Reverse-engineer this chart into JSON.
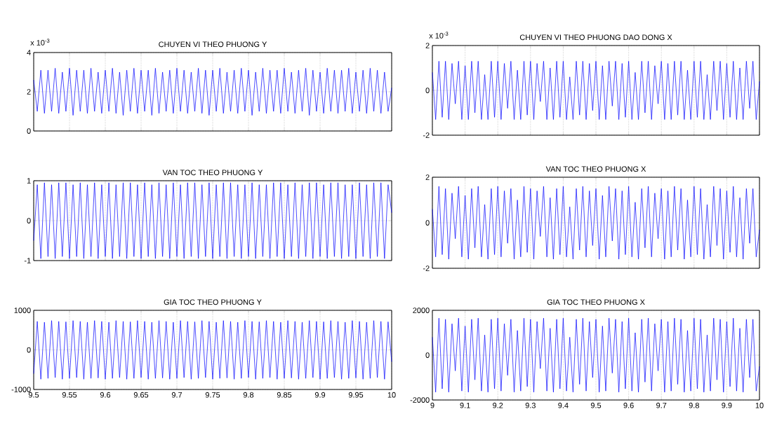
{
  "chart_data": [
    {
      "type": "line",
      "title": "CHUYEN VI THEO PHUONG Y",
      "annotations": [
        "x 10$^{-3}$"
      ],
      "color": "#0000ff",
      "grid": true,
      "tick_labels": "y",
      "xlim": [
        9.5,
        10
      ],
      "ylim": [
        0,
        4
      ],
      "xticks": [
        9.5,
        9.55,
        9.6,
        9.65,
        9.7,
        9.75,
        9.8,
        9.85,
        9.9,
        9.95,
        10
      ],
      "yticks": [
        0,
        2,
        4
      ],
      "x": [
        9.5,
        9.505,
        9.51,
        9.515,
        9.52,
        9.525,
        9.53,
        9.535,
        9.54,
        9.545,
        9.55,
        9.555,
        9.56,
        9.565,
        9.57,
        9.575,
        9.58,
        9.585,
        9.59,
        9.595,
        9.6,
        9.605,
        9.61,
        9.615,
        9.62,
        9.625,
        9.63,
        9.635,
        9.64,
        9.645,
        9.65,
        9.655,
        9.66,
        9.665,
        9.67,
        9.675,
        9.68,
        9.685,
        9.69,
        9.695,
        9.7,
        9.705,
        9.71,
        9.715,
        9.72,
        9.725,
        9.73,
        9.735,
        9.74,
        9.745,
        9.75,
        9.755,
        9.76,
        9.765,
        9.77,
        9.775,
        9.78,
        9.785,
        9.79,
        9.795,
        9.8,
        9.805,
        9.81,
        9.815,
        9.82,
        9.825,
        9.83,
        9.835,
        9.84,
        9.845,
        9.85,
        9.855,
        9.86,
        9.865,
        9.87,
        9.875,
        9.88,
        9.885,
        9.89,
        9.895,
        9.9,
        9.905,
        9.91,
        9.915,
        9.92,
        9.925,
        9.93,
        9.935,
        9.94,
        9.945,
        9.95,
        9.955,
        9.96,
        9.965,
        9.97,
        9.975,
        9.98,
        9.985,
        9.99,
        9.995,
        10
      ],
      "values": [
        2.6,
        1.0,
        3.1,
        0.9,
        3.1,
        1.0,
        3.2,
        0.9,
        3.0,
        1.0,
        3.2,
        0.8,
        3.1,
        1.0,
        3.1,
        0.9,
        3.2,
        1.0,
        3.0,
        0.9,
        3.1,
        1.0,
        3.2,
        0.9,
        3.0,
        0.8,
        3.1,
        1.0,
        3.2,
        0.9,
        3.1,
        1.0,
        3.1,
        0.8,
        3.2,
        0.9,
        3.0,
        1.0,
        3.1,
        0.9,
        3.2,
        1.0,
        3.1,
        0.9,
        3.0,
        1.0,
        3.2,
        0.9,
        3.1,
        0.8,
        3.1,
        1.0,
        3.2,
        0.9,
        3.0,
        1.0,
        3.1,
        0.9,
        3.2,
        1.0,
        3.1,
        0.8,
        3.0,
        1.0,
        3.2,
        0.9,
        3.1,
        1.0,
        3.1,
        0.9,
        3.2,
        1.0,
        3.0,
        0.9,
        3.1,
        1.0,
        3.2,
        0.8,
        3.1,
        1.0,
        3.0,
        0.9,
        3.2,
        1.0,
        3.1,
        0.9,
        3.1,
        1.0,
        3.2,
        0.9,
        3.0,
        1.0,
        3.1,
        0.9,
        3.2,
        1.0,
        3.1,
        0.9,
        3.0,
        1.0,
        2.2
      ]
    },
    {
      "type": "line",
      "title": "CHUYEN VI THEO PHUONG DAO DONG X",
      "annotations": [
        "x 10$^{-3}$"
      ],
      "color": "#0000ff",
      "grid": true,
      "tick_labels": "y",
      "xlim": [
        9,
        10
      ],
      "ylim": [
        -2,
        2
      ],
      "xticks": [
        9,
        9.1,
        9.2,
        9.3,
        9.4,
        9.5,
        9.6,
        9.7,
        9.8,
        9.9,
        10
      ],
      "yticks": [
        -2,
        0,
        2
      ],
      "x": [
        9,
        9.01,
        9.02,
        9.03,
        9.04,
        9.05,
        9.06,
        9.07,
        9.08,
        9.09,
        9.1,
        9.11,
        9.12,
        9.13,
        9.14,
        9.15,
        9.16,
        9.17,
        9.18,
        9.19,
        9.2,
        9.21,
        9.22,
        9.23,
        9.24,
        9.25,
        9.26,
        9.27,
        9.28,
        9.29,
        9.3,
        9.31,
        9.32,
        9.33,
        9.34,
        9.35,
        9.36,
        9.37,
        9.38,
        9.39,
        9.4,
        9.41,
        9.42,
        9.43,
        9.44,
        9.45,
        9.46,
        9.47,
        9.48,
        9.49,
        9.5,
        9.51,
        9.52,
        9.53,
        9.54,
        9.55,
        9.56,
        9.57,
        9.58,
        9.59,
        9.6,
        9.61,
        9.62,
        9.63,
        9.64,
        9.65,
        9.66,
        9.67,
        9.68,
        9.69,
        9.7,
        9.71,
        9.72,
        9.73,
        9.74,
        9.75,
        9.76,
        9.77,
        9.78,
        9.79,
        9.8,
        9.81,
        9.82,
        9.83,
        9.84,
        9.85,
        9.86,
        9.87,
        9.88,
        9.89,
        9.9,
        9.91,
        9.92,
        9.93,
        9.94,
        9.95,
        9.96,
        9.97,
        9.98,
        9.99,
        10
      ],
      "values": [
        0.8,
        -1.3,
        1.3,
        -1.2,
        1.3,
        -1.3,
        1.2,
        -0.6,
        1.3,
        -1.3,
        1.1,
        -1.3,
        1.3,
        -1.0,
        1.3,
        -1.3,
        0.7,
        -1.3,
        1.3,
        -1.2,
        1.3,
        -1.3,
        1.2,
        -0.8,
        1.3,
        -1.3,
        0.9,
        -1.3,
        1.3,
        -1.1,
        1.3,
        -1.3,
        1.2,
        -0.5,
        1.3,
        -1.3,
        1.0,
        -1.3,
        1.3,
        -1.2,
        1.3,
        -1.3,
        0.6,
        -1.3,
        1.3,
        -1.1,
        1.3,
        -1.3,
        1.2,
        -0.9,
        1.3,
        -1.3,
        1.1,
        -1.3,
        1.3,
        -0.7,
        1.3,
        -1.3,
        1.2,
        -1.2,
        1.3,
        -1.3,
        0.8,
        -1.3,
        1.3,
        -1.0,
        1.3,
        -1.3,
        1.1,
        -0.6,
        1.3,
        -1.3,
        1.2,
        -1.3,
        1.3,
        -1.1,
        1.3,
        -1.3,
        0.9,
        -1.3,
        1.3,
        -1.2,
        1.3,
        -1.3,
        0.7,
        -1.3,
        1.3,
        -0.9,
        1.3,
        -1.3,
        1.2,
        -1.2,
        1.3,
        -1.3,
        1.0,
        -1.3,
        1.3,
        -0.8,
        1.3,
        -1.3,
        0.4
      ]
    },
    {
      "type": "line",
      "title": "VAN TOC THEO PHUONG Y",
      "color": "#0000ff",
      "grid": true,
      "tick_labels": "y",
      "xlim": [
        9.5,
        10
      ],
      "ylim": [
        -1,
        1
      ],
      "xticks": [
        9.5,
        9.55,
        9.6,
        9.65,
        9.7,
        9.75,
        9.8,
        9.85,
        9.9,
        9.95,
        10
      ],
      "yticks": [
        -1,
        0,
        1
      ],
      "x": [
        9.5,
        9.505,
        9.51,
        9.515,
        9.52,
        9.525,
        9.53,
        9.535,
        9.54,
        9.545,
        9.55,
        9.555,
        9.56,
        9.565,
        9.57,
        9.575,
        9.58,
        9.585,
        9.59,
        9.595,
        9.6,
        9.605,
        9.61,
        9.615,
        9.62,
        9.625,
        9.63,
        9.635,
        9.64,
        9.645,
        9.65,
        9.655,
        9.66,
        9.665,
        9.67,
        9.675,
        9.68,
        9.685,
        9.69,
        9.695,
        9.7,
        9.705,
        9.71,
        9.715,
        9.72,
        9.725,
        9.73,
        9.735,
        9.74,
        9.745,
        9.75,
        9.755,
        9.76,
        9.765,
        9.77,
        9.775,
        9.78,
        9.785,
        9.79,
        9.795,
        9.8,
        9.805,
        9.81,
        9.815,
        9.82,
        9.825,
        9.83,
        9.835,
        9.84,
        9.845,
        9.85,
        9.855,
        9.86,
        9.865,
        9.87,
        9.875,
        9.88,
        9.885,
        9.89,
        9.895,
        9.9,
        9.905,
        9.91,
        9.915,
        9.92,
        9.925,
        9.93,
        9.935,
        9.94,
        9.945,
        9.95,
        9.955,
        9.96,
        9.965,
        9.97,
        9.975,
        9.98,
        9.985,
        9.99,
        9.995,
        10
      ],
      "values": [
        -0.5,
        0.9,
        -0.95,
        0.95,
        -0.9,
        0.9,
        -0.95,
        0.95,
        -0.9,
        0.95,
        -0.95,
        0.9,
        -0.9,
        0.95,
        -0.95,
        0.9,
        -0.9,
        0.95,
        -0.95,
        0.9,
        -0.9,
        0.95,
        -0.95,
        0.9,
        -0.9,
        0.95,
        -0.95,
        0.95,
        -0.9,
        0.9,
        -0.95,
        0.95,
        -0.9,
        0.9,
        -0.95,
        0.95,
        -0.9,
        0.9,
        -0.95,
        0.95,
        -0.9,
        0.9,
        -0.95,
        0.95,
        -0.9,
        0.95,
        -0.95,
        0.9,
        -0.9,
        0.95,
        -0.95,
        0.9,
        -0.9,
        0.95,
        -0.95,
        0.95,
        -0.9,
        0.9,
        -0.95,
        0.9,
        -0.9,
        0.95,
        -0.95,
        0.9,
        -0.9,
        0.9,
        -0.95,
        0.95,
        -0.9,
        0.95,
        -0.95,
        0.9,
        -0.9,
        0.95,
        -0.95,
        0.9,
        -0.9,
        0.95,
        -0.95,
        0.95,
        -0.9,
        0.9,
        -0.95,
        0.95,
        -0.9,
        0.95,
        -0.95,
        0.9,
        -0.9,
        0.9,
        -0.95,
        0.95,
        -0.9,
        0.9,
        -0.95,
        0.95,
        -0.9,
        0.95,
        -0.95,
        0.9,
        0.2
      ]
    },
    {
      "type": "line",
      "title": "VAN TOC THEO PHUONG X",
      "color": "#0000ff",
      "grid": true,
      "tick_labels": "y",
      "xlim": [
        9,
        10
      ],
      "ylim": [
        -2,
        2
      ],
      "xticks": [
        9,
        9.1,
        9.2,
        9.3,
        9.4,
        9.5,
        9.6,
        9.7,
        9.8,
        9.9,
        10
      ],
      "yticks": [
        -2,
        0,
        2
      ],
      "x": [
        9,
        9.01,
        9.02,
        9.03,
        9.04,
        9.05,
        9.06,
        9.07,
        9.08,
        9.09,
        9.1,
        9.11,
        9.12,
        9.13,
        9.14,
        9.15,
        9.16,
        9.17,
        9.18,
        9.19,
        9.2,
        9.21,
        9.22,
        9.23,
        9.24,
        9.25,
        9.26,
        9.27,
        9.28,
        9.29,
        9.3,
        9.31,
        9.32,
        9.33,
        9.34,
        9.35,
        9.36,
        9.37,
        9.38,
        9.39,
        9.4,
        9.41,
        9.42,
        9.43,
        9.44,
        9.45,
        9.46,
        9.47,
        9.48,
        9.49,
        9.5,
        9.51,
        9.52,
        9.53,
        9.54,
        9.55,
        9.56,
        9.57,
        9.58,
        9.59,
        9.6,
        9.61,
        9.62,
        9.63,
        9.64,
        9.65,
        9.66,
        9.67,
        9.68,
        9.69,
        9.7,
        9.71,
        9.72,
        9.73,
        9.74,
        9.75,
        9.76,
        9.77,
        9.78,
        9.79,
        9.8,
        9.81,
        9.82,
        9.83,
        9.84,
        9.85,
        9.86,
        9.87,
        9.88,
        9.89,
        9.9,
        9.91,
        9.92,
        9.93,
        9.94,
        9.95,
        9.96,
        9.97,
        9.98,
        9.99,
        10
      ],
      "values": [
        0.6,
        -1.5,
        1.6,
        -1.4,
        1.5,
        -1.6,
        1.3,
        -0.7,
        1.6,
        -1.5,
        1.2,
        -1.6,
        1.5,
        -1.1,
        1.6,
        -1.5,
        0.8,
        -1.6,
        1.5,
        -1.4,
        1.6,
        -1.5,
        1.4,
        -0.9,
        1.5,
        -1.6,
        1.0,
        -1.5,
        1.6,
        -1.3,
        1.5,
        -1.6,
        1.4,
        -0.6,
        1.6,
        -1.5,
        1.1,
        -1.6,
        1.5,
        -1.4,
        1.6,
        -1.5,
        0.7,
        -1.6,
        1.5,
        -1.2,
        1.6,
        -1.5,
        1.4,
        -1.0,
        1.5,
        -1.6,
        1.2,
        -1.5,
        1.6,
        -0.8,
        1.5,
        -1.6,
        1.4,
        -1.4,
        1.6,
        -1.5,
        0.9,
        -1.6,
        1.5,
        -1.1,
        1.6,
        -1.5,
        1.3,
        -0.7,
        1.5,
        -1.6,
        1.4,
        -1.5,
        1.6,
        -1.2,
        1.5,
        -1.6,
        1.0,
        -1.5,
        1.6,
        -1.4,
        1.5,
        -1.6,
        0.8,
        -1.5,
        1.6,
        -1.0,
        1.5,
        -1.6,
        1.4,
        -1.3,
        1.6,
        -1.5,
        1.1,
        -1.6,
        1.5,
        -0.9,
        1.5,
        -1.5,
        -0.3
      ]
    },
    {
      "type": "line",
      "title": "GIA TOC THEO PHUONG Y",
      "color": "#0000ff",
      "grid": true,
      "xlim": [
        9.5,
        10
      ],
      "ylim": [
        -1000,
        1000
      ],
      "xticks": [
        9.5,
        9.55,
        9.6,
        9.65,
        9.7,
        9.75,
        9.8,
        9.85,
        9.9,
        9.95,
        10
      ],
      "yticks": [
        -1000,
        0,
        1000
      ],
      "x": [
        9.5,
        9.505,
        9.51,
        9.515,
        9.52,
        9.525,
        9.53,
        9.535,
        9.54,
        9.545,
        9.55,
        9.555,
        9.56,
        9.565,
        9.57,
        9.575,
        9.58,
        9.585,
        9.59,
        9.595,
        9.6,
        9.605,
        9.61,
        9.615,
        9.62,
        9.625,
        9.63,
        9.635,
        9.64,
        9.645,
        9.65,
        9.655,
        9.66,
        9.665,
        9.67,
        9.675,
        9.68,
        9.685,
        9.69,
        9.695,
        9.7,
        9.705,
        9.71,
        9.715,
        9.72,
        9.725,
        9.73,
        9.735,
        9.74,
        9.745,
        9.75,
        9.755,
        9.76,
        9.765,
        9.77,
        9.775,
        9.78,
        9.785,
        9.79,
        9.795,
        9.8,
        9.805,
        9.81,
        9.815,
        9.82,
        9.825,
        9.83,
        9.835,
        9.84,
        9.845,
        9.85,
        9.855,
        9.86,
        9.865,
        9.87,
        9.875,
        9.88,
        9.885,
        9.89,
        9.895,
        9.9,
        9.905,
        9.91,
        9.915,
        9.92,
        9.925,
        9.93,
        9.935,
        9.94,
        9.945,
        9.95,
        9.955,
        9.96,
        9.965,
        9.97,
        9.975,
        9.98,
        9.985,
        9.99,
        9.995,
        10
      ],
      "values": [
        -600,
        720,
        -740,
        700,
        -720,
        740,
        -700,
        720,
        -740,
        710,
        -720,
        740,
        -700,
        720,
        -740,
        700,
        -720,
        740,
        -710,
        720,
        -740,
        700,
        -720,
        740,
        -700,
        720,
        -740,
        710,
        -720,
        740,
        -700,
        720,
        -740,
        700,
        -720,
        740,
        -710,
        720,
        -740,
        700,
        -720,
        740,
        -700,
        720,
        -740,
        710,
        -720,
        740,
        -700,
        720,
        -740,
        700,
        -720,
        740,
        -710,
        720,
        -740,
        700,
        -720,
        740,
        -700,
        720,
        -740,
        710,
        -720,
        740,
        -700,
        720,
        -740,
        700,
        -720,
        740,
        -710,
        720,
        -740,
        700,
        -720,
        740,
        -700,
        720,
        -740,
        710,
        -720,
        740,
        -700,
        720,
        -740,
        700,
        -720,
        740,
        -710,
        720,
        -740,
        700,
        -720,
        740,
        -700,
        720,
        -740,
        710,
        -300
      ]
    },
    {
      "type": "line",
      "title": "GIA TOC THEO PHUONG X",
      "color": "#0000ff",
      "grid": true,
      "xlim": [
        9,
        10
      ],
      "ylim": [
        -2000,
        2000
      ],
      "xticks": [
        9,
        9.1,
        9.2,
        9.3,
        9.4,
        9.5,
        9.6,
        9.7,
        9.8,
        9.9,
        10
      ],
      "yticks": [
        -2000,
        0,
        2000
      ],
      "x": [
        9,
        9.01,
        9.02,
        9.03,
        9.04,
        9.05,
        9.06,
        9.07,
        9.08,
        9.09,
        9.1,
        9.11,
        9.12,
        9.13,
        9.14,
        9.15,
        9.16,
        9.17,
        9.18,
        9.19,
        9.2,
        9.21,
        9.22,
        9.23,
        9.24,
        9.25,
        9.26,
        9.27,
        9.28,
        9.29,
        9.3,
        9.31,
        9.32,
        9.33,
        9.34,
        9.35,
        9.36,
        9.37,
        9.38,
        9.39,
        9.4,
        9.41,
        9.42,
        9.43,
        9.44,
        9.45,
        9.46,
        9.47,
        9.48,
        9.49,
        9.5,
        9.51,
        9.52,
        9.53,
        9.54,
        9.55,
        9.56,
        9.57,
        9.58,
        9.59,
        9.6,
        9.61,
        9.62,
        9.63,
        9.64,
        9.65,
        9.66,
        9.67,
        9.68,
        9.69,
        9.7,
        9.71,
        9.72,
        9.73,
        9.74,
        9.75,
        9.76,
        9.77,
        9.78,
        9.79,
        9.8,
        9.81,
        9.82,
        9.83,
        9.84,
        9.85,
        9.86,
        9.87,
        9.88,
        9.89,
        9.9,
        9.91,
        9.92,
        9.93,
        9.94,
        9.95,
        9.96,
        9.97,
        9.98,
        9.99,
        10
      ],
      "values": [
        800,
        -1650,
        1650,
        -1500,
        1600,
        -1650,
        1400,
        -700,
        1650,
        -1600,
        1300,
        -1650,
        1600,
        -1100,
        1650,
        -1600,
        900,
        -1650,
        1600,
        -1500,
        1650,
        -1600,
        1400,
        -900,
        1600,
        -1650,
        1100,
        -1600,
        1650,
        -1400,
        1600,
        -1650,
        1500,
        -600,
        1650,
        -1600,
        1200,
        -1650,
        1600,
        -1500,
        1650,
        -1600,
        800,
        -1650,
        1600,
        -1300,
        1650,
        -1600,
        1500,
        -1000,
        1600,
        -1650,
        1300,
        -1600,
        1650,
        -800,
        1600,
        -1650,
        1500,
        -1500,
        1650,
        -1600,
        1000,
        -1650,
        1600,
        -1200,
        1650,
        -1600,
        1400,
        -700,
        1600,
        -1650,
        1500,
        -1600,
        1650,
        -1300,
        1600,
        -1650,
        1100,
        -1600,
        1650,
        -1500,
        1600,
        -1650,
        900,
        -1600,
        1650,
        -1100,
        1600,
        -1650,
        1500,
        -1400,
        1650,
        -1600,
        1200,
        -1650,
        1600,
        -1000,
        1600,
        -1600,
        -500
      ]
    }
  ]
}
